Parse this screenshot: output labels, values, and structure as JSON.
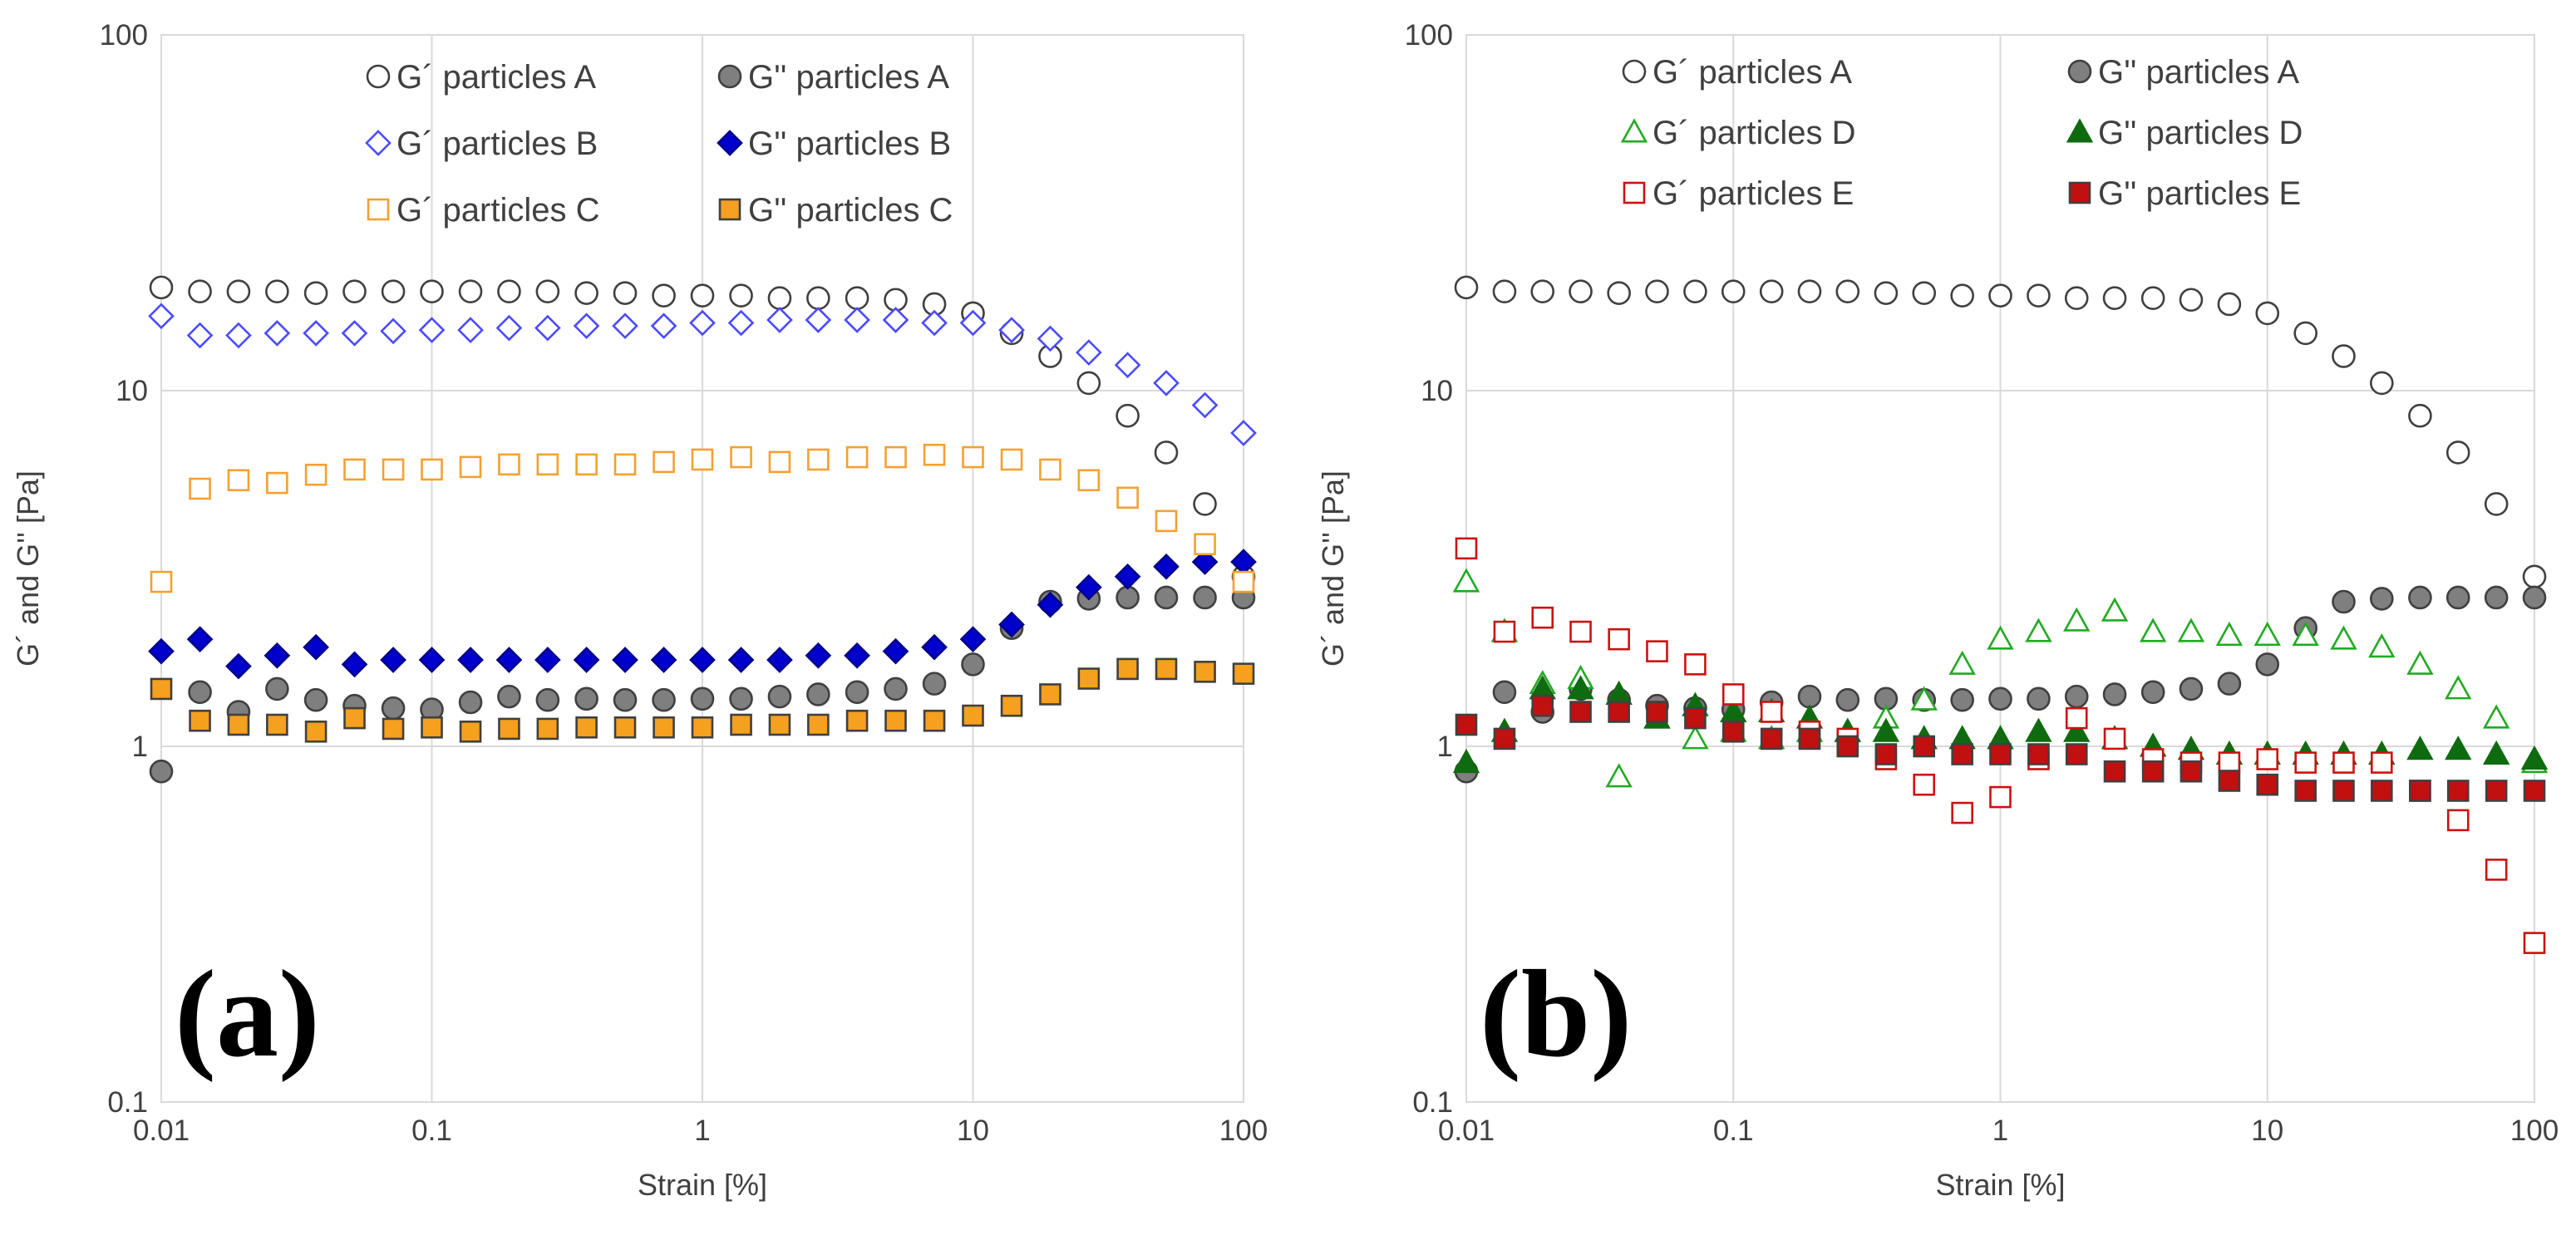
{
  "chart_data": [
    {
      "type": "scatter",
      "panel_label": "(a)",
      "xlabel": "Strain [%]",
      "ylabel": "G´ and G'' [Pa]",
      "xscale": "log",
      "yscale": "log",
      "xlim": [
        0.01,
        100
      ],
      "ylim": [
        0.1,
        100
      ],
      "xticks": [
        "0.01",
        "0.1",
        "1",
        "10",
        "100"
      ],
      "yticks": [
        "0.1",
        "1",
        "10",
        "100"
      ],
      "grid": true,
      "legend_position": "top",
      "x": [
        0.01,
        0.0139,
        0.0193,
        0.0268,
        0.0373,
        0.0518,
        0.072,
        0.1,
        0.139,
        0.193,
        0.268,
        0.373,
        0.518,
        0.72,
        1.0,
        1.39,
        1.93,
        2.68,
        3.73,
        5.18,
        7.2,
        10,
        13.9,
        19.3,
        26.8,
        37.3,
        51.8,
        72,
        100
      ],
      "series": [
        {
          "name": "G´ particles A",
          "marker": "circle",
          "fill": "#ffffff",
          "stroke": "#404040",
          "values": [
            19.5,
            19,
            19,
            19,
            18.8,
            19,
            19,
            19,
            19,
            19,
            19,
            18.8,
            18.8,
            18.5,
            18.5,
            18.5,
            18.2,
            18.2,
            18.2,
            18,
            17.5,
            16.5,
            14.5,
            12.5,
            10.5,
            8.5,
            6.7,
            4.8,
            3
          ]
        },
        {
          "name": "G'' particles A",
          "marker": "circle",
          "fill": "#7f7f7f",
          "stroke": "#404040",
          "values": [
            0.85,
            1.42,
            1.25,
            1.45,
            1.35,
            1.3,
            1.28,
            1.27,
            1.33,
            1.38,
            1.35,
            1.36,
            1.35,
            1.35,
            1.36,
            1.36,
            1.38,
            1.4,
            1.42,
            1.45,
            1.5,
            1.7,
            2.15,
            2.55,
            2.6,
            2.62,
            2.62,
            2.62,
            2.62
          ]
        },
        {
          "name": "G´ particles B",
          "marker": "diamond",
          "fill": "#ffffff",
          "stroke": "#4b4bff",
          "values": [
            16.2,
            14.3,
            14.3,
            14.5,
            14.5,
            14.5,
            14.7,
            14.8,
            14.8,
            15,
            15,
            15.2,
            15.2,
            15.2,
            15.5,
            15.5,
            15.8,
            15.8,
            15.8,
            15.8,
            15.5,
            15.5,
            14.8,
            14,
            12.8,
            11.8,
            10.5,
            9.1,
            7.6
          ]
        },
        {
          "name": "G'' particles B",
          "marker": "diamond",
          "fill": "#0000cc",
          "stroke": "#00008b",
          "values": [
            1.85,
            2.0,
            1.68,
            1.8,
            1.9,
            1.7,
            1.75,
            1.75,
            1.75,
            1.75,
            1.75,
            1.75,
            1.75,
            1.75,
            1.75,
            1.75,
            1.75,
            1.8,
            1.8,
            1.85,
            1.9,
            2.0,
            2.2,
            2.5,
            2.8,
            3.0,
            3.2,
            3.3,
            3.3
          ]
        },
        {
          "name": "G´ particles C",
          "marker": "square",
          "fill": "#ffffff",
          "stroke": "#f5a030",
          "values": [
            2.9,
            5.3,
            5.6,
            5.5,
            5.8,
            6.0,
            6.0,
            6.0,
            6.1,
            6.2,
            6.2,
            6.2,
            6.2,
            6.3,
            6.4,
            6.5,
            6.3,
            6.4,
            6.5,
            6.5,
            6.6,
            6.5,
            6.4,
            6.0,
            5.6,
            5.0,
            4.3,
            3.7,
            2.9
          ]
        },
        {
          "name": "G'' particles C",
          "marker": "square",
          "fill": "#f5a01e",
          "stroke": "#404040",
          "values": [
            1.45,
            1.18,
            1.15,
            1.15,
            1.1,
            1.2,
            1.12,
            1.13,
            1.1,
            1.12,
            1.12,
            1.13,
            1.13,
            1.13,
            1.13,
            1.15,
            1.15,
            1.15,
            1.18,
            1.18,
            1.18,
            1.22,
            1.3,
            1.4,
            1.55,
            1.65,
            1.65,
            1.62,
            1.6
          ]
        }
      ]
    },
    {
      "type": "scatter",
      "panel_label": "(b)",
      "xlabel": "Strain [%]",
      "ylabel": "G´ and G'' [Pa]",
      "xscale": "log",
      "yscale": "log",
      "xlim": [
        0.01,
        100
      ],
      "ylim": [
        0.1,
        100
      ],
      "xticks": [
        "0.01",
        "0.1",
        "1",
        "10",
        "100"
      ],
      "yticks": [
        "0.1",
        "1",
        "10",
        "100"
      ],
      "grid": true,
      "legend_position": "top",
      "x": [
        0.01,
        0.0139,
        0.0193,
        0.0268,
        0.0373,
        0.0518,
        0.072,
        0.1,
        0.139,
        0.193,
        0.268,
        0.373,
        0.518,
        0.72,
        1.0,
        1.39,
        1.93,
        2.68,
        3.73,
        5.18,
        7.2,
        10,
        13.9,
        19.3,
        26.8,
        37.3,
        51.8,
        72,
        100
      ],
      "series": [
        {
          "name": "G´ particles A",
          "marker": "circle",
          "fill": "#ffffff",
          "stroke": "#404040",
          "values": [
            19.5,
            19,
            19,
            19,
            18.8,
            19,
            19,
            19,
            19,
            19,
            19,
            18.8,
            18.8,
            18.5,
            18.5,
            18.5,
            18.2,
            18.2,
            18.2,
            18,
            17.5,
            16.5,
            14.5,
            12.5,
            10.5,
            8.5,
            6.7,
            4.8,
            3
          ]
        },
        {
          "name": "G'' particles A",
          "marker": "circle",
          "fill": "#7f7f7f",
          "stroke": "#404040",
          "values": [
            0.85,
            1.42,
            1.25,
            1.45,
            1.35,
            1.3,
            1.28,
            1.27,
            1.33,
            1.38,
            1.35,
            1.36,
            1.35,
            1.35,
            1.36,
            1.36,
            1.38,
            1.4,
            1.42,
            1.45,
            1.5,
            1.7,
            2.15,
            2.55,
            2.6,
            2.62,
            2.62,
            2.62,
            2.62
          ]
        },
        {
          "name": "G´ particles D",
          "marker": "triangle",
          "fill": "#ffffff",
          "stroke": "#22aa22",
          "values": [
            2.9,
            2.1,
            1.5,
            1.55,
            0.82,
            1.2,
            1.05,
            1.1,
            1.05,
            1.1,
            1.1,
            1.2,
            1.35,
            1.7,
            2.0,
            2.1,
            2.25,
            2.4,
            2.1,
            2.1,
            2.05,
            2.05,
            2.05,
            2.0,
            1.9,
            1.7,
            1.45,
            1.2,
            0.9
          ]
        },
        {
          "name": "G'' particles D",
          "marker": "triangle",
          "fill": "#0f6b0f",
          "stroke": "#0f6b0f",
          "values": [
            0.9,
            1.1,
            1.45,
            1.45,
            1.4,
            1.2,
            1.3,
            1.25,
            1.25,
            1.2,
            1.1,
            1.1,
            1.05,
            1.05,
            1.05,
            1.1,
            1.1,
            1.05,
            1.0,
            0.98,
            0.95,
            0.95,
            0.95,
            0.95,
            0.95,
            0.98,
            0.98,
            0.95,
            0.92
          ]
        },
        {
          "name": "G´ particles E",
          "marker": "square",
          "fill": "#ffffff",
          "stroke": "#cc1111",
          "values": [
            3.6,
            2.1,
            2.3,
            2.1,
            2.0,
            1.85,
            1.7,
            1.4,
            1.25,
            1.1,
            1.05,
            0.92,
            0.78,
            0.65,
            0.72,
            0.92,
            1.2,
            1.05,
            0.92,
            0.9,
            0.9,
            0.92,
            0.9,
            0.9,
            0.9,
            0.75,
            0.62,
            0.45,
            0.28
          ]
        },
        {
          "name": "G'' particles E",
          "marker": "square",
          "fill": "#c01010",
          "stroke": "#404040",
          "values": [
            1.15,
            1.05,
            1.3,
            1.25,
            1.25,
            1.25,
            1.2,
            1.1,
            1.05,
            1.05,
            1.0,
            0.95,
            1.0,
            0.95,
            0.95,
            0.95,
            0.95,
            0.85,
            0.85,
            0.85,
            0.8,
            0.78,
            0.75,
            0.75,
            0.75,
            0.75,
            0.75,
            0.75,
            0.75
          ]
        }
      ]
    }
  ]
}
